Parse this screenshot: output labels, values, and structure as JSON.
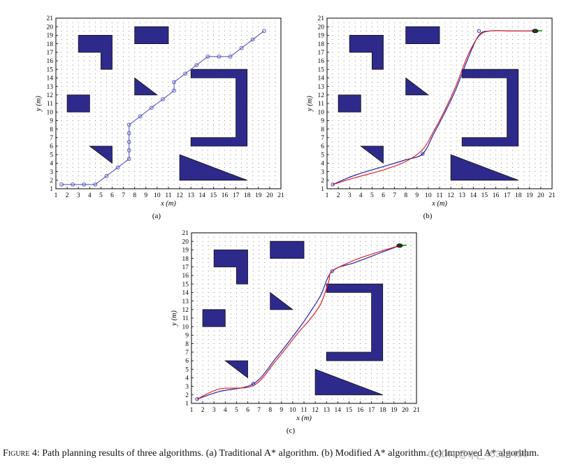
{
  "caption": {
    "label": "Figure 4:",
    "text": "Path planning results of three algorithms. (a) Traditional A* algorithm. (b) Modified A* algorithm. (c) Improved A* algorithm."
  },
  "watermark": "CSDN @qq_45324456",
  "colors": {
    "obstacle": "#2e2a8c",
    "obstacle_edge": "#111111",
    "path_a": "#5a57c4",
    "path_blue": "#2222aa",
    "path_red": "#e02020",
    "robot_tail": "#22bb22"
  },
  "chart_data": [
    {
      "type": "line",
      "panel_label": "(a)",
      "xlabel": "x (m)",
      "ylabel": "y (m)",
      "xlim": [
        1,
        21
      ],
      "ylim": [
        1,
        21
      ],
      "xticks": [
        1,
        2,
        3,
        4,
        5,
        6,
        7,
        8,
        9,
        10,
        11,
        12,
        13,
        14,
        15,
        16,
        17,
        18,
        19,
        20,
        21
      ],
      "yticks": [
        1,
        2,
        3,
        4,
        5,
        6,
        7,
        8,
        9,
        10,
        11,
        12,
        13,
        14,
        15,
        16,
        17,
        18,
        19,
        20,
        21
      ],
      "grid": "dotted",
      "obstacles": "shared",
      "series": [
        {
          "style": "markers",
          "color_key": "path_a",
          "points": [
            [
              1.5,
              1.5
            ],
            [
              2.5,
              1.5
            ],
            [
              3.5,
              1.5
            ],
            [
              4.5,
              1.5
            ],
            [
              5.5,
              2.5
            ],
            [
              6.5,
              3.5
            ],
            [
              7.5,
              4.5
            ],
            [
              7.5,
              5.5
            ],
            [
              7.5,
              6.5
            ],
            [
              7.5,
              7.5
            ],
            [
              7.5,
              8.5
            ],
            [
              8.5,
              9.5
            ],
            [
              9.5,
              10.5
            ],
            [
              10.5,
              11.5
            ],
            [
              11.5,
              12.5
            ],
            [
              11.5,
              13.5
            ],
            [
              12.5,
              14.5
            ],
            [
              13.5,
              15.5
            ],
            [
              14.5,
              16.5
            ],
            [
              15.5,
              16.5
            ],
            [
              16.5,
              16.5
            ],
            [
              17.5,
              17.5
            ],
            [
              18.5,
              18.5
            ],
            [
              19.5,
              19.5
            ]
          ]
        }
      ]
    },
    {
      "type": "line",
      "panel_label": "(b)",
      "xlabel": "x (m)",
      "ylabel": "y (m)",
      "xlim": [
        1,
        21
      ],
      "ylim": [
        1,
        21
      ],
      "xticks": [
        1,
        2,
        3,
        4,
        5,
        6,
        7,
        8,
        9,
        10,
        11,
        12,
        13,
        14,
        15,
        16,
        17,
        18,
        19,
        20,
        21
      ],
      "yticks": [
        1,
        2,
        3,
        4,
        5,
        6,
        7,
        8,
        9,
        10,
        11,
        12,
        13,
        14,
        15,
        16,
        17,
        18,
        19,
        20,
        21
      ],
      "grid": "dotted",
      "obstacles": "shared",
      "series": [
        {
          "style": "line",
          "color_key": "path_blue",
          "points": [
            [
              1.5,
              1.5
            ],
            [
              3.5,
              2.6
            ],
            [
              6,
              3.6
            ],
            [
              8,
              4.4
            ],
            [
              9.5,
              5.1
            ],
            [
              10.5,
              7.5
            ],
            [
              11.5,
              10
            ],
            [
              12.5,
              12.8
            ],
            [
              13.5,
              16.2
            ],
            [
              14.5,
              19
            ],
            [
              15.5,
              19.5
            ],
            [
              17.5,
              19.5
            ],
            [
              19.5,
              19.5
            ]
          ]
        },
        {
          "style": "line",
          "color_key": "path_red",
          "points": [
            [
              1.5,
              1.5
            ],
            [
              3.5,
              2.3
            ],
            [
              6,
              3.2
            ],
            [
              8,
              4.2
            ],
            [
              9.5,
              5.6
            ],
            [
              10.5,
              7.8
            ],
            [
              11.5,
              10.3
            ],
            [
              12.5,
              13.2
            ],
            [
              13.5,
              16.6
            ],
            [
              14.5,
              18.9
            ],
            [
              15.5,
              19.5
            ],
            [
              17.5,
              19.5
            ],
            [
              19.5,
              19.5
            ]
          ]
        }
      ],
      "markers": [
        [
          1.5,
          1.5
        ],
        [
          9.5,
          5.1
        ],
        [
          14.5,
          19.5
        ]
      ]
    },
    {
      "type": "line",
      "panel_label": "(c)",
      "xlabel": "x (m)",
      "ylabel": "y (m)",
      "xlim": [
        1,
        21
      ],
      "ylim": [
        1,
        21
      ],
      "xticks": [
        1,
        2,
        3,
        4,
        5,
        6,
        7,
        8,
        9,
        10,
        11,
        12,
        13,
        14,
        15,
        16,
        17,
        18,
        19,
        20,
        21
      ],
      "yticks": [
        1,
        2,
        3,
        4,
        5,
        6,
        7,
        8,
        9,
        10,
        11,
        12,
        13,
        14,
        15,
        16,
        17,
        18,
        19,
        20,
        21
      ],
      "grid": "dotted",
      "obstacles": "shared",
      "series": [
        {
          "style": "line",
          "color_key": "path_blue",
          "points": [
            [
              1.5,
              1.5
            ],
            [
              3.5,
              2.4
            ],
            [
              6.5,
              3.3
            ],
            [
              8.5,
              6.3
            ],
            [
              10.5,
              9.7
            ],
            [
              11.5,
              11.6
            ],
            [
              12.5,
              13.7
            ],
            [
              13.5,
              16.5
            ],
            [
              15.5,
              17.5
            ],
            [
              17.5,
              18.5
            ],
            [
              19.5,
              19.5
            ]
          ]
        },
        {
          "style": "line",
          "color_key": "path_red",
          "points": [
            [
              1.5,
              1.5
            ],
            [
              3.5,
              2.7
            ],
            [
              6.5,
              3.1
            ],
            [
              8.5,
              6.0
            ],
            [
              10.5,
              9.3
            ],
            [
              11.5,
              10.8
            ],
            [
              12.5,
              12.7
            ],
            [
              13.2,
              15.3
            ],
            [
              13.5,
              16.5
            ],
            [
              15.5,
              17.8
            ],
            [
              17.5,
              18.7
            ],
            [
              19.5,
              19.5
            ]
          ]
        }
      ],
      "markers": [
        [
          1.5,
          1.5
        ],
        [
          6.5,
          3.3
        ],
        [
          13.5,
          16.5
        ]
      ]
    }
  ],
  "obstacles": [
    {
      "kind": "polygon",
      "points": [
        [
          3,
          17
        ],
        [
          3,
          19
        ],
        [
          6,
          19
        ],
        [
          6,
          15
        ],
        [
          5,
          15
        ],
        [
          5,
          17
        ]
      ]
    },
    {
      "kind": "rect",
      "x": [
        8,
        11
      ],
      "y": [
        18,
        20
      ]
    },
    {
      "kind": "triangle",
      "points": [
        [
          8,
          14
        ],
        [
          8,
          12
        ],
        [
          10,
          12
        ]
      ]
    },
    {
      "kind": "rect",
      "x": [
        2,
        4
      ],
      "y": [
        10,
        12
      ]
    },
    {
      "kind": "polygon",
      "points": [
        [
          13,
          15
        ],
        [
          13,
          14
        ],
        [
          17,
          14
        ],
        [
          17,
          7
        ],
        [
          13,
          7
        ],
        [
          13,
          6
        ],
        [
          18,
          6
        ],
        [
          18,
          15
        ]
      ]
    },
    {
      "kind": "polygon",
      "points": [
        [
          4,
          6
        ],
        [
          6,
          6
        ],
        [
          6,
          4
        ]
      ]
    },
    {
      "kind": "triangle",
      "points": [
        [
          12,
          5
        ],
        [
          12,
          2
        ],
        [
          18,
          2
        ]
      ]
    }
  ]
}
